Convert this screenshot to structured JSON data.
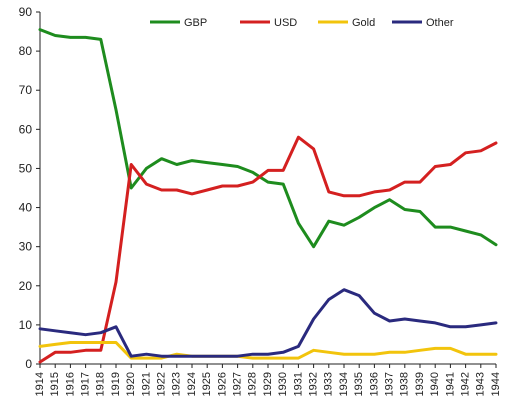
{
  "chart_data": {
    "type": "line",
    "title": "",
    "xlabel": "",
    "ylabel": "",
    "ylim": [
      0,
      90
    ],
    "y_ticks": [
      "0",
      "10",
      "20",
      "30",
      "40",
      "50",
      "60",
      "70",
      "80",
      "90"
    ],
    "grid": false,
    "legend_position": "top",
    "categories": [
      "1914",
      "1915",
      "1916",
      "1917",
      "1918",
      "1919",
      "1920",
      "1921",
      "1922",
      "1923",
      "1924",
      "1925",
      "1926",
      "1927",
      "1928",
      "1929",
      "1930",
      "1931",
      "1932",
      "1933",
      "1934",
      "1935",
      "1936",
      "1937",
      "1938",
      "1939",
      "1940",
      "1941",
      "1942",
      "1943",
      "1944"
    ],
    "series": [
      {
        "name": "GBP",
        "color": "#1e8c1e",
        "values": [
          85.5,
          84,
          83.5,
          83.5,
          83,
          65,
          45,
          50,
          52.5,
          51,
          52,
          51.5,
          51,
          50.5,
          49,
          46.5,
          46,
          36,
          30,
          36.5,
          35.5,
          37.5,
          40,
          42,
          39.5,
          39,
          35,
          35,
          34,
          33,
          30.5
        ]
      },
      {
        "name": "USD",
        "color": "#d42020",
        "values": [
          0.5,
          3,
          3,
          3.5,
          3.5,
          21,
          51,
          46,
          44.5,
          44.5,
          43.5,
          44.5,
          45.5,
          45.5,
          46.5,
          49.5,
          49.5,
          58,
          55,
          44,
          43,
          43,
          44,
          44.5,
          46.5,
          46.5,
          50.5,
          51,
          54,
          54.5,
          56.5
        ]
      },
      {
        "name": "Gold",
        "color": "#f2c40c",
        "values": [
          4.5,
          5,
          5.5,
          5.5,
          5.5,
          5.5,
          1.5,
          1.5,
          1.5,
          2.5,
          2,
          2,
          2,
          2,
          1.5,
          1.5,
          1.5,
          1.5,
          3.5,
          3,
          2.5,
          2.5,
          2.5,
          3,
          3,
          3.5,
          4,
          4,
          2.5,
          2.5,
          2.5
        ]
      },
      {
        "name": "Other",
        "color": "#2a2a7e",
        "values": [
          9,
          8.5,
          8,
          7.5,
          8,
          9.5,
          2,
          2.5,
          2,
          2,
          2,
          2,
          2,
          2,
          2.5,
          2.5,
          3,
          4.5,
          11.5,
          16.5,
          19,
          17.5,
          13,
          11,
          11.5,
          11,
          10.5,
          9.5,
          9.5,
          10,
          10.5
        ]
      }
    ]
  }
}
